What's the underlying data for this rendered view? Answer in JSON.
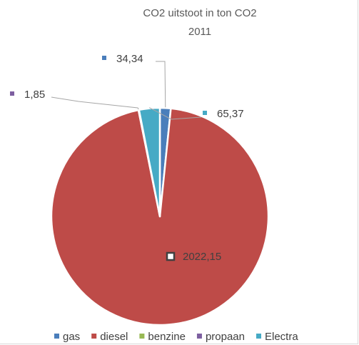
{
  "chart_data": {
    "type": "pie",
    "title": "CO2 uitstoot in ton CO2",
    "subtitle": "2011",
    "categories": [
      "gas",
      "diesel",
      "benzine",
      "propaan",
      "Electra"
    ],
    "values": [
      34.34,
      2022.15,
      0,
      1.85,
      65.37
    ],
    "value_labels": [
      "34,34",
      "2022,15",
      "",
      "1,85",
      "65,37"
    ],
    "colors": [
      "#4a7ebb",
      "#be4b48",
      "#98b954",
      "#7d5fa0",
      "#46aac5"
    ],
    "legend_position": "bottom"
  }
}
